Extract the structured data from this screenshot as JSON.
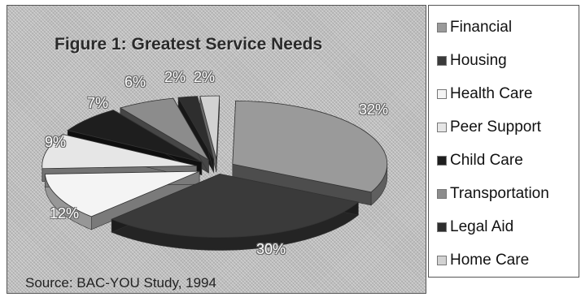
{
  "chart_data": {
    "type": "pie",
    "title": "Figure 1: Greatest Service Needs",
    "source": "Source: BAC-YOU Study, 1994",
    "categories": [
      "Financial",
      "Housing",
      "Health Care",
      "Peer Support",
      "Child Care",
      "Transportation",
      "Legal Aid",
      "Home Care"
    ],
    "values": [
      32,
      30,
      12,
      9,
      7,
      6,
      2,
      2
    ],
    "value_labels": [
      "32%",
      "30%",
      "12%",
      "9%",
      "7%",
      "6%",
      "2%",
      "2%"
    ],
    "colors": [
      "#9a9a9a",
      "#3a3a3a",
      "#f4f4f4",
      "#e6e6e6",
      "#1e1e1e",
      "#8c8c8c",
      "#2e2e2e",
      "#d2d2d2"
    ],
    "legend_position": "right",
    "exploded": true,
    "three_d": true
  }
}
